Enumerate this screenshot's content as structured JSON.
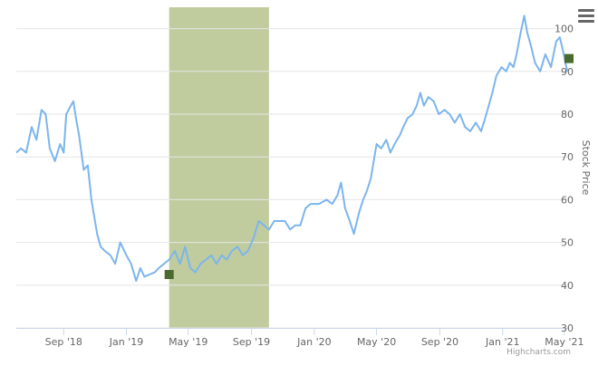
{
  "menu": {
    "icon": "hamburger-menu-icon"
  },
  "credits": "Highcharts.com",
  "chart_data": {
    "type": "line",
    "title": "",
    "xlabel": "",
    "ylabel": "Stock Price",
    "y_axis_position": "right",
    "ylim": [
      30,
      105
    ],
    "yticks": [
      30,
      40,
      50,
      60,
      70,
      80,
      90,
      100
    ],
    "xlim": [
      "2018-06-01",
      "2021-05-10"
    ],
    "xticks": [
      {
        "date": "2018-09-01",
        "label": "Sep '18"
      },
      {
        "date": "2019-01-01",
        "label": "Jan '19"
      },
      {
        "date": "2019-05-01",
        "label": "May '19"
      },
      {
        "date": "2019-09-01",
        "label": "Sep '19"
      },
      {
        "date": "2020-01-01",
        "label": "Jan '20"
      },
      {
        "date": "2020-05-01",
        "label": "May '20"
      },
      {
        "date": "2020-09-01",
        "label": "Sep '20"
      },
      {
        "date": "2021-01-01",
        "label": "Jan '21"
      },
      {
        "date": "2021-05-01",
        "label": "May '21"
      }
    ],
    "plot_band": {
      "from": "2019-03-25",
      "to": "2019-10-05",
      "color": "#c0cc9e"
    },
    "grid": true,
    "series": [
      {
        "color": "#7cb5ec",
        "points": [
          [
            "2018-06-01",
            71
          ],
          [
            "2018-06-10",
            72
          ],
          [
            "2018-06-20",
            71
          ],
          [
            "2018-07-01",
            77
          ],
          [
            "2018-07-10",
            74
          ],
          [
            "2018-07-20",
            81
          ],
          [
            "2018-07-28",
            80
          ],
          [
            "2018-08-05",
            72
          ],
          [
            "2018-08-15",
            69
          ],
          [
            "2018-08-25",
            73
          ],
          [
            "2018-09-01",
            71
          ],
          [
            "2018-09-06",
            80
          ],
          [
            "2018-09-15",
            82
          ],
          [
            "2018-09-20",
            83
          ],
          [
            "2018-09-25",
            79
          ],
          [
            "2018-10-01",
            75
          ],
          [
            "2018-10-10",
            67
          ],
          [
            "2018-10-18",
            68
          ],
          [
            "2018-10-25",
            60
          ],
          [
            "2018-11-05",
            52
          ],
          [
            "2018-11-12",
            49
          ],
          [
            "2018-11-20",
            48
          ],
          [
            "2018-12-01",
            47
          ],
          [
            "2018-12-10",
            45
          ],
          [
            "2018-12-20",
            50
          ],
          [
            "2019-01-01",
            47
          ],
          [
            "2019-01-10",
            45
          ],
          [
            "2019-01-20",
            41
          ],
          [
            "2019-01-28",
            44
          ],
          [
            "2019-02-05",
            42
          ],
          [
            "2019-02-15",
            42.5
          ],
          [
            "2019-02-25",
            43
          ],
          [
            "2019-03-05",
            44
          ],
          [
            "2019-03-15",
            45
          ],
          [
            "2019-03-25",
            46
          ],
          [
            "2019-04-05",
            48
          ],
          [
            "2019-04-15",
            45
          ],
          [
            "2019-04-25",
            49
          ],
          [
            "2019-05-05",
            44
          ],
          [
            "2019-05-15",
            43
          ],
          [
            "2019-05-25",
            45
          ],
          [
            "2019-06-05",
            46
          ],
          [
            "2019-06-15",
            47
          ],
          [
            "2019-06-25",
            45
          ],
          [
            "2019-07-05",
            47
          ],
          [
            "2019-07-15",
            46
          ],
          [
            "2019-07-25",
            48
          ],
          [
            "2019-08-05",
            49
          ],
          [
            "2019-08-15",
            47
          ],
          [
            "2019-08-25",
            48
          ],
          [
            "2019-09-05",
            51
          ],
          [
            "2019-09-15",
            55
          ],
          [
            "2019-09-25",
            54
          ],
          [
            "2019-10-05",
            53
          ],
          [
            "2019-10-15",
            55
          ],
          [
            "2019-10-25",
            55
          ],
          [
            "2019-11-05",
            55
          ],
          [
            "2019-11-15",
            53
          ],
          [
            "2019-11-25",
            54
          ],
          [
            "2019-12-05",
            54
          ],
          [
            "2019-12-15",
            58
          ],
          [
            "2019-12-25",
            59
          ],
          [
            "2020-01-10",
            59
          ],
          [
            "2020-01-25",
            60
          ],
          [
            "2020-02-05",
            59
          ],
          [
            "2020-02-15",
            61
          ],
          [
            "2020-02-22",
            64
          ],
          [
            "2020-03-01",
            58
          ],
          [
            "2020-03-10",
            55
          ],
          [
            "2020-03-18",
            52
          ],
          [
            "2020-03-28",
            57
          ],
          [
            "2020-04-05",
            60
          ],
          [
            "2020-04-12",
            62
          ],
          [
            "2020-04-20",
            65
          ],
          [
            "2020-05-01",
            73
          ],
          [
            "2020-05-10",
            72
          ],
          [
            "2020-05-20",
            74
          ],
          [
            "2020-05-28",
            71
          ],
          [
            "2020-06-05",
            73
          ],
          [
            "2020-06-15",
            75
          ],
          [
            "2020-06-22",
            77
          ],
          [
            "2020-06-30",
            79
          ],
          [
            "2020-07-10",
            80
          ],
          [
            "2020-07-18",
            82
          ],
          [
            "2020-07-25",
            85
          ],
          [
            "2020-08-01",
            82
          ],
          [
            "2020-08-10",
            84
          ],
          [
            "2020-08-20",
            83
          ],
          [
            "2020-08-30",
            80
          ],
          [
            "2020-09-10",
            81
          ],
          [
            "2020-09-20",
            80
          ],
          [
            "2020-09-30",
            78
          ],
          [
            "2020-10-10",
            80
          ],
          [
            "2020-10-20",
            77
          ],
          [
            "2020-10-30",
            76
          ],
          [
            "2020-11-10",
            78
          ],
          [
            "2020-11-20",
            76
          ],
          [
            "2020-11-28",
            79
          ],
          [
            "2020-12-05",
            82
          ],
          [
            "2020-12-12",
            85
          ],
          [
            "2020-12-20",
            89
          ],
          [
            "2020-12-30",
            91
          ],
          [
            "2021-01-08",
            90
          ],
          [
            "2021-01-15",
            92
          ],
          [
            "2021-01-22",
            91
          ],
          [
            "2021-01-28",
            94
          ],
          [
            "2021-02-05",
            99
          ],
          [
            "2021-02-12",
            103
          ],
          [
            "2021-02-18",
            99
          ],
          [
            "2021-02-25",
            96
          ],
          [
            "2021-03-05",
            92
          ],
          [
            "2021-03-15",
            90
          ],
          [
            "2021-03-25",
            94
          ],
          [
            "2021-04-05",
            91
          ],
          [
            "2021-04-15",
            97
          ],
          [
            "2021-04-22",
            98
          ],
          [
            "2021-04-28",
            95
          ],
          [
            "2021-05-03",
            92
          ],
          [
            "2021-05-07",
            90
          ]
        ]
      }
    ],
    "markers": [
      {
        "date": "2019-03-25",
        "value": 42.5,
        "color": "#4b6a2e"
      },
      {
        "date": "2021-05-10",
        "value": 93,
        "color": "#4b6a2e"
      }
    ]
  }
}
